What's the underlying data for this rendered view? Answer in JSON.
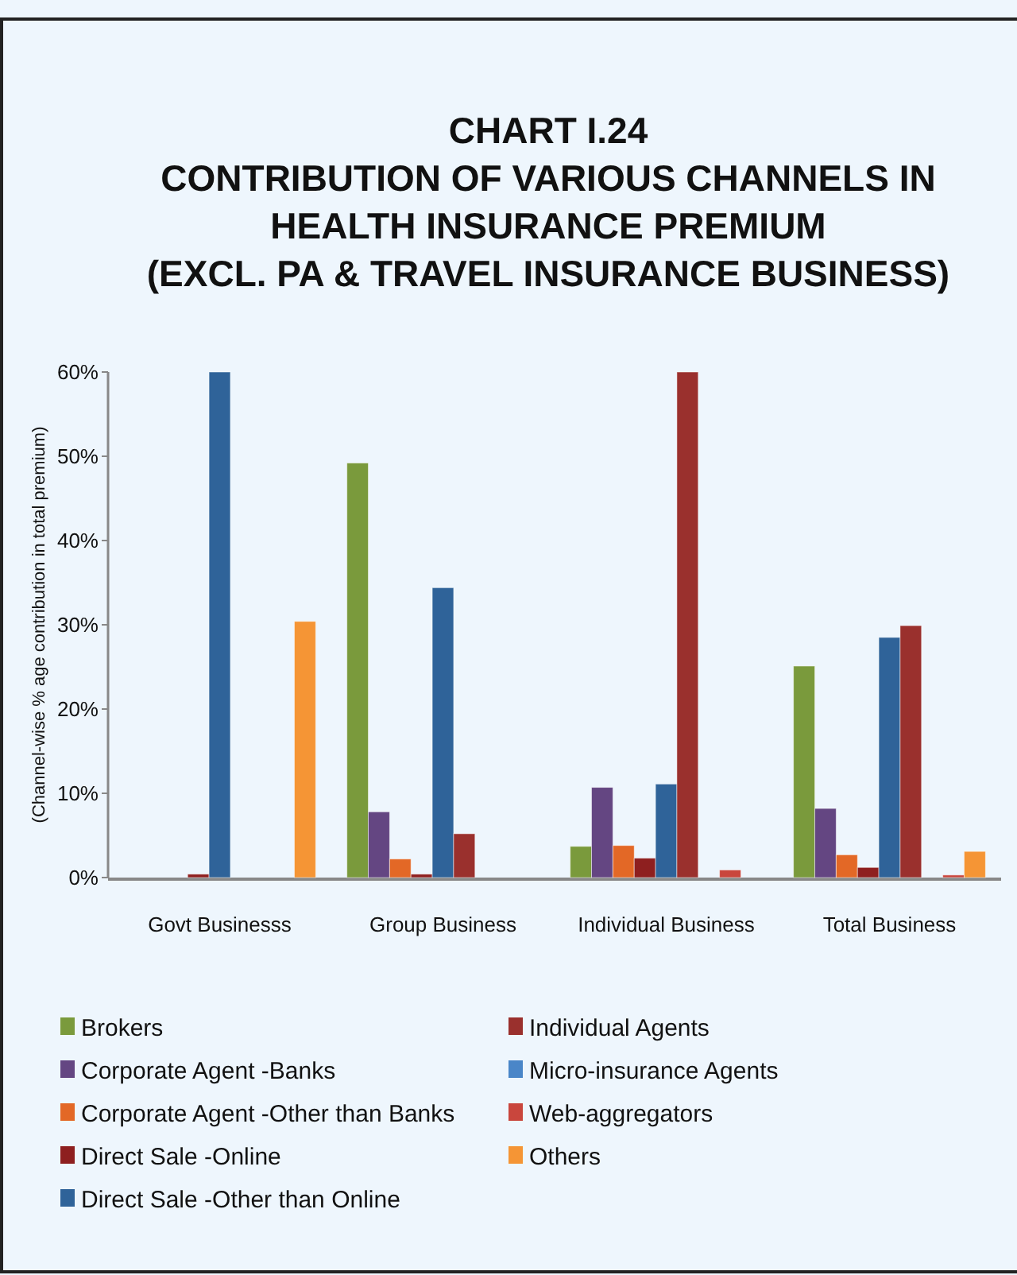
{
  "chart_data": {
    "type": "bar",
    "title": "CHART I.24\nCONTRIBUTION OF VARIOUS CHANNELS IN\nHEALTH INSURANCE PREMIUM\n(EXCL. PA & TRAVEL INSURANCE BUSINESS)",
    "ylabel": "(Channel-wise % age contribution in total premium)",
    "categories": [
      "Govt Businesss",
      "Group Business",
      "Individual Business",
      "Total Business"
    ],
    "series": [
      {
        "name": "Brokers",
        "color": "#7a9a3c",
        "values": [
          0,
          49.2,
          3.7,
          25.1
        ]
      },
      {
        "name": "Corporate Agent -Banks",
        "color": "#644682",
        "values": [
          0,
          7.8,
          10.7,
          8.2
        ]
      },
      {
        "name": "Corporate Agent -Other than Banks",
        "color": "#e36826",
        "values": [
          0,
          2.2,
          3.8,
          2.7
        ]
      },
      {
        "name": "Direct Sale -Online",
        "color": "#8e1f1f",
        "values": [
          0.4,
          0.4,
          2.3,
          1.2
        ]
      },
      {
        "name": "Direct Sale -Other than Online",
        "color": "#2f6399",
        "values": [
          60,
          34.4,
          11.1,
          28.5
        ]
      },
      {
        "name": "Individual Agents",
        "color": "#9a302d",
        "values": [
          0,
          5.2,
          60,
          29.9
        ]
      },
      {
        "name": "Micro-insurance Agents",
        "color": "#4a86c8",
        "values": [
          0,
          0,
          0,
          0
        ]
      },
      {
        "name": "Web-aggregators",
        "color": "#c9463d",
        "values": [
          0,
          0,
          0.9,
          0.3
        ]
      },
      {
        "name": "Others",
        "color": "#f59535",
        "values": [
          30.4,
          0,
          0,
          3.1
        ]
      }
    ],
    "ylim": [
      0,
      60
    ],
    "yticks": [
      {
        "value": 0,
        "label": "0%"
      },
      {
        "value": 10,
        "label": "10%"
      },
      {
        "value": 20,
        "label": "20%"
      },
      {
        "value": 30,
        "label": "30%"
      },
      {
        "value": 40,
        "label": "40%"
      },
      {
        "value": 50,
        "label": "50%"
      },
      {
        "value": 60,
        "label": "60%"
      }
    ],
    "grid": false,
    "legend": "bottom"
  }
}
